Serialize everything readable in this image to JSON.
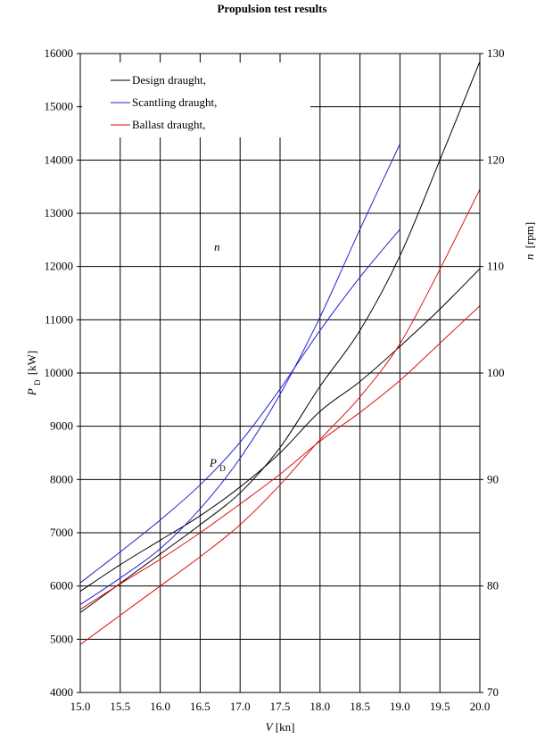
{
  "chart_data": {
    "type": "line",
    "title": "Propulsion test results",
    "xlabel": {
      "var": "V",
      "unit": "[kn]"
    },
    "ylabel_left": {
      "var": "P",
      "sub": "D",
      "unit": "[kW]"
    },
    "ylabel_right": {
      "var": "n",
      "unit": "[rpm]"
    },
    "xlim": [
      15.0,
      20.0
    ],
    "ylim_left": [
      4000,
      16000
    ],
    "ylim_right": [
      70,
      130
    ],
    "x_ticks": [
      "15.0",
      "15.5",
      "16.0",
      "16.5",
      "17.0",
      "17.5",
      "18.0",
      "18.5",
      "19.0",
      "19.5",
      "20.0"
    ],
    "y_left_ticks": [
      "4000",
      "5000",
      "6000",
      "7000",
      "8000",
      "9000",
      "10000",
      "11000",
      "12000",
      "13000",
      "14000",
      "15000",
      "16000"
    ],
    "y_right_ticks": [
      "70",
      "80",
      "90",
      "100",
      "110",
      "120",
      "130"
    ],
    "grid": true,
    "legend_position": "top-left",
    "colors": {
      "design": "#000000",
      "scantling": "#2222cc",
      "ballast": "#dd1111"
    },
    "annotations": {
      "n_label": "n",
      "pd_label_var": "P",
      "pd_label_sub": "D"
    },
    "series": [
      {
        "name": "Design draught,",
        "color_key": "design",
        "power": {
          "x": [
            15.0,
            15.5,
            16.0,
            16.5,
            17.0,
            17.5,
            18.0,
            18.5,
            19.0,
            19.5,
            20.0
          ],
          "y": [
            5500,
            6050,
            6600,
            7150,
            7750,
            8600,
            9750,
            10800,
            12200,
            14000,
            15850
          ]
        },
        "rpm": {
          "x": [
            15.0,
            15.5,
            16.0,
            16.5,
            17.0,
            17.5,
            18.0,
            18.5,
            19.0,
            19.5,
            20.0
          ],
          "y": [
            79.5,
            82.0,
            84.3,
            86.6,
            89.3,
            92.5,
            96.4,
            99.2,
            102.5,
            106.0,
            109.8
          ]
        }
      },
      {
        "name": "Scantling draught,",
        "color_key": "scantling",
        "power": {
          "x": [
            15.0,
            15.5,
            16.0,
            16.5,
            17.0,
            17.5,
            18.0,
            18.5,
            19.0
          ],
          "y": [
            5650,
            6150,
            6700,
            7450,
            8400,
            9600,
            11050,
            12700,
            14300
          ]
        },
        "rpm": {
          "x": [
            15.0,
            15.5,
            16.0,
            16.5,
            17.0,
            17.5,
            18.0,
            18.5,
            19.0
          ],
          "y": [
            80.3,
            83.2,
            86.2,
            89.5,
            93.5,
            98.5,
            104.0,
            109.0,
            113.5
          ]
        }
      },
      {
        "name": "Ballast draught,",
        "color_key": "ballast",
        "power": {
          "x": [
            15.0,
            15.5,
            16.0,
            16.5,
            17.0,
            17.5,
            18.0,
            18.5,
            19.0,
            19.5,
            20.0
          ],
          "y": [
            4900,
            5450,
            6000,
            6550,
            7150,
            7900,
            8750,
            9550,
            10550,
            11950,
            13450
          ]
        },
        "rpm": {
          "x": [
            15.0,
            15.5,
            16.0,
            16.5,
            17.0,
            17.5,
            18.0,
            18.5,
            19.0,
            19.5,
            20.0
          ],
          "y": [
            77.8,
            80.2,
            82.5,
            85.0,
            87.7,
            90.5,
            93.6,
            96.3,
            99.3,
            102.8,
            106.3
          ]
        }
      }
    ]
  }
}
